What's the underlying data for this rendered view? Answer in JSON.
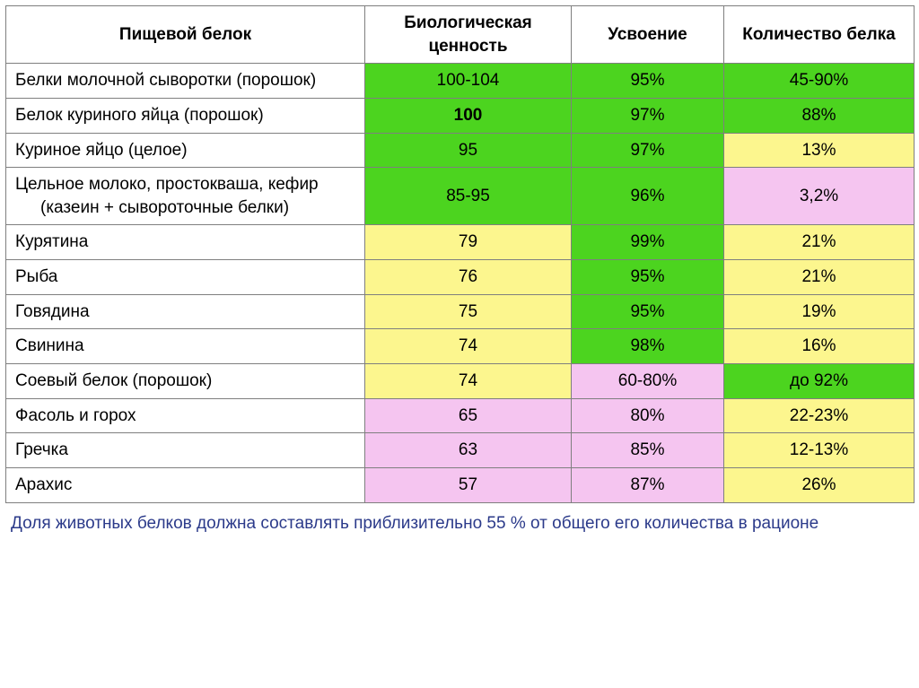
{
  "colors": {
    "green": "#4cd41f",
    "yellow": "#fcf68e",
    "pink": "#f5c5f0",
    "white": "#ffffff"
  },
  "columns": [
    "Пищевой белок",
    "Биологическая ценность",
    "Усвоение",
    "Количество белка"
  ],
  "rows": [
    {
      "name": "Белки молочной сыворотки (порошок)",
      "cells": [
        {
          "text": "100-104",
          "bg": "green",
          "bold": false
        },
        {
          "text": "95%",
          "bg": "green",
          "bold": false
        },
        {
          "text": "45-90%",
          "bg": "green",
          "bold": false
        }
      ]
    },
    {
      "name": "Белок куриного яйца (порошок)",
      "cells": [
        {
          "text": "100",
          "bg": "green",
          "bold": true
        },
        {
          "text": "97%",
          "bg": "green",
          "bold": false
        },
        {
          "text": "88%",
          "bg": "green",
          "bold": false
        }
      ]
    },
    {
      "name": "Куриное яйцо (целое)",
      "cells": [
        {
          "text": "95",
          "bg": "green",
          "bold": false
        },
        {
          "text": "97%",
          "bg": "green",
          "bold": false
        },
        {
          "text": "13%",
          "bg": "yellow",
          "bold": false
        }
      ]
    },
    {
      "name": "Цельное молоко, простокваша, кефир (казеин + сывороточные белки)",
      "cells": [
        {
          "text": "85-95",
          "bg": "green",
          "bold": false
        },
        {
          "text": "96%",
          "bg": "green",
          "bold": false
        },
        {
          "text": "3,2%",
          "bg": "pink",
          "bold": false
        }
      ]
    },
    {
      "name": "Курятина",
      "cells": [
        {
          "text": "79",
          "bg": "yellow",
          "bold": false
        },
        {
          "text": "99%",
          "bg": "green",
          "bold": false
        },
        {
          "text": "21%",
          "bg": "yellow",
          "bold": false
        }
      ]
    },
    {
      "name": "Рыба",
      "cells": [
        {
          "text": "76",
          "bg": "yellow",
          "bold": false
        },
        {
          "text": "95%",
          "bg": "green",
          "bold": false
        },
        {
          "text": "21%",
          "bg": "yellow",
          "bold": false
        }
      ]
    },
    {
      "name": "Говядина",
      "cells": [
        {
          "text": "75",
          "bg": "yellow",
          "bold": false
        },
        {
          "text": "95%",
          "bg": "green",
          "bold": false
        },
        {
          "text": "19%",
          "bg": "yellow",
          "bold": false
        }
      ]
    },
    {
      "name": "Свинина",
      "cells": [
        {
          "text": "74",
          "bg": "yellow",
          "bold": false
        },
        {
          "text": "98%",
          "bg": "green",
          "bold": false
        },
        {
          "text": "16%",
          "bg": "yellow",
          "bold": false
        }
      ]
    },
    {
      "name": "Соевый белок (порошок)",
      "cells": [
        {
          "text": "74",
          "bg": "yellow",
          "bold": false
        },
        {
          "text": "60-80%",
          "bg": "pink",
          "bold": false
        },
        {
          "text": "до 92%",
          "bg": "green",
          "bold": false
        }
      ]
    },
    {
      "name": "Фасоль и горох",
      "cells": [
        {
          "text": "65",
          "bg": "pink",
          "bold": false
        },
        {
          "text": "80%",
          "bg": "pink",
          "bold": false
        },
        {
          "text": "22-23%",
          "bg": "yellow",
          "bold": false
        }
      ]
    },
    {
      "name": "Гречка",
      "cells": [
        {
          "text": "63",
          "bg": "pink",
          "bold": false
        },
        {
          "text": "85%",
          "bg": "pink",
          "bold": false
        },
        {
          "text": "12-13%",
          "bg": "yellow",
          "bold": false
        }
      ]
    },
    {
      "name": "Арахис",
      "cells": [
        {
          "text": "57",
          "bg": "pink",
          "bold": false
        },
        {
          "text": "87%",
          "bg": "pink",
          "bold": false
        },
        {
          "text": "26%",
          "bg": "yellow",
          "bold": false
        }
      ]
    }
  ],
  "footnote": "Доля животных белков должна составлять приблизительно 55 % от общего его количества в рационе"
}
